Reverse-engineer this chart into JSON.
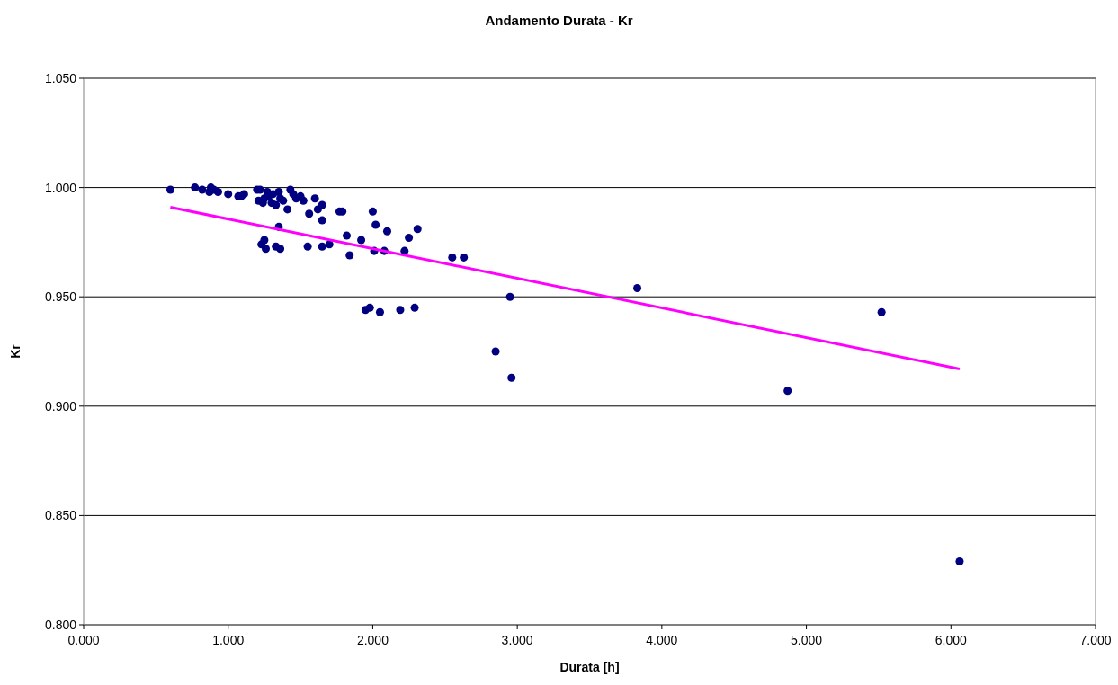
{
  "chart_data": {
    "type": "scatter",
    "title": "Andamento Durata - Kr",
    "xlabel": "Durata [h]",
    "ylabel": "Kr",
    "xlim": [
      0,
      7
    ],
    "xticks": [
      {
        "value": 0,
        "label": "0.000"
      },
      {
        "value": 1,
        "label": "1.000"
      },
      {
        "value": 2,
        "label": "2.000"
      },
      {
        "value": 3,
        "label": "3.000"
      },
      {
        "value": 4,
        "label": "4.000"
      },
      {
        "value": 5,
        "label": "5.000"
      },
      {
        "value": 6,
        "label": "6.000"
      },
      {
        "value": 7,
        "label": "7.000"
      }
    ],
    "ylim": [
      0.8,
      1.05
    ],
    "yticks": [
      {
        "value": 0.8,
        "label": "0.800"
      },
      {
        "value": 0.85,
        "label": "0.850"
      },
      {
        "value": 0.9,
        "label": "0.900"
      },
      {
        "value": 0.95,
        "label": "0.950"
      },
      {
        "value": 1.0,
        "label": "1.000"
      },
      {
        "value": 1.05,
        "label": "1.050"
      }
    ],
    "grid": "y",
    "series": [
      {
        "marker": "circle",
        "color": "#000080",
        "x": [
          0.6,
          0.77,
          0.82,
          0.87,
          0.88,
          0.9,
          0.93,
          1.0,
          1.07,
          1.09,
          1.11,
          1.2,
          1.22,
          1.21,
          1.24,
          1.25,
          1.27,
          1.28,
          1.3,
          1.31,
          1.33,
          1.35,
          1.36,
          1.38,
          1.41,
          1.43,
          1.45,
          1.47,
          1.5,
          1.52,
          1.56,
          1.6,
          1.62,
          1.65,
          1.65,
          1.23,
          1.25,
          1.26,
          1.33,
          1.36,
          1.35,
          1.55,
          1.65,
          1.7,
          1.77,
          1.79,
          1.82,
          1.84,
          1.92,
          2.0,
          2.02,
          2.01,
          2.08,
          2.1,
          2.22,
          2.25,
          2.31,
          2.55,
          2.63,
          1.95,
          1.98,
          2.05,
          2.19,
          2.29,
          2.95,
          2.85,
          2.96,
          3.83,
          4.87,
          5.52,
          6.06
        ],
        "values": [
          0.999,
          1.0,
          0.999,
          0.998,
          1.0,
          0.999,
          0.998,
          0.997,
          0.996,
          0.996,
          0.997,
          0.999,
          0.999,
          0.994,
          0.993,
          0.995,
          0.998,
          0.996,
          0.993,
          0.997,
          0.992,
          0.998,
          0.995,
          0.994,
          0.99,
          0.999,
          0.997,
          0.995,
          0.996,
          0.994,
          0.988,
          0.995,
          0.99,
          0.992,
          0.985,
          0.974,
          0.976,
          0.972,
          0.973,
          0.972,
          0.982,
          0.973,
          0.973,
          0.974,
          0.989,
          0.989,
          0.978,
          0.969,
          0.976,
          0.989,
          0.983,
          0.971,
          0.971,
          0.98,
          0.971,
          0.977,
          0.981,
          0.968,
          0.968,
          0.944,
          0.945,
          0.943,
          0.944,
          0.945,
          0.95,
          0.925,
          0.913,
          0.954,
          0.907,
          0.943,
          0.829
        ]
      },
      {
        "type": "line",
        "marker": "none",
        "color": "#ff00ff",
        "x": [
          0.6,
          6.06
        ],
        "values": [
          0.991,
          0.917
        ]
      }
    ]
  }
}
